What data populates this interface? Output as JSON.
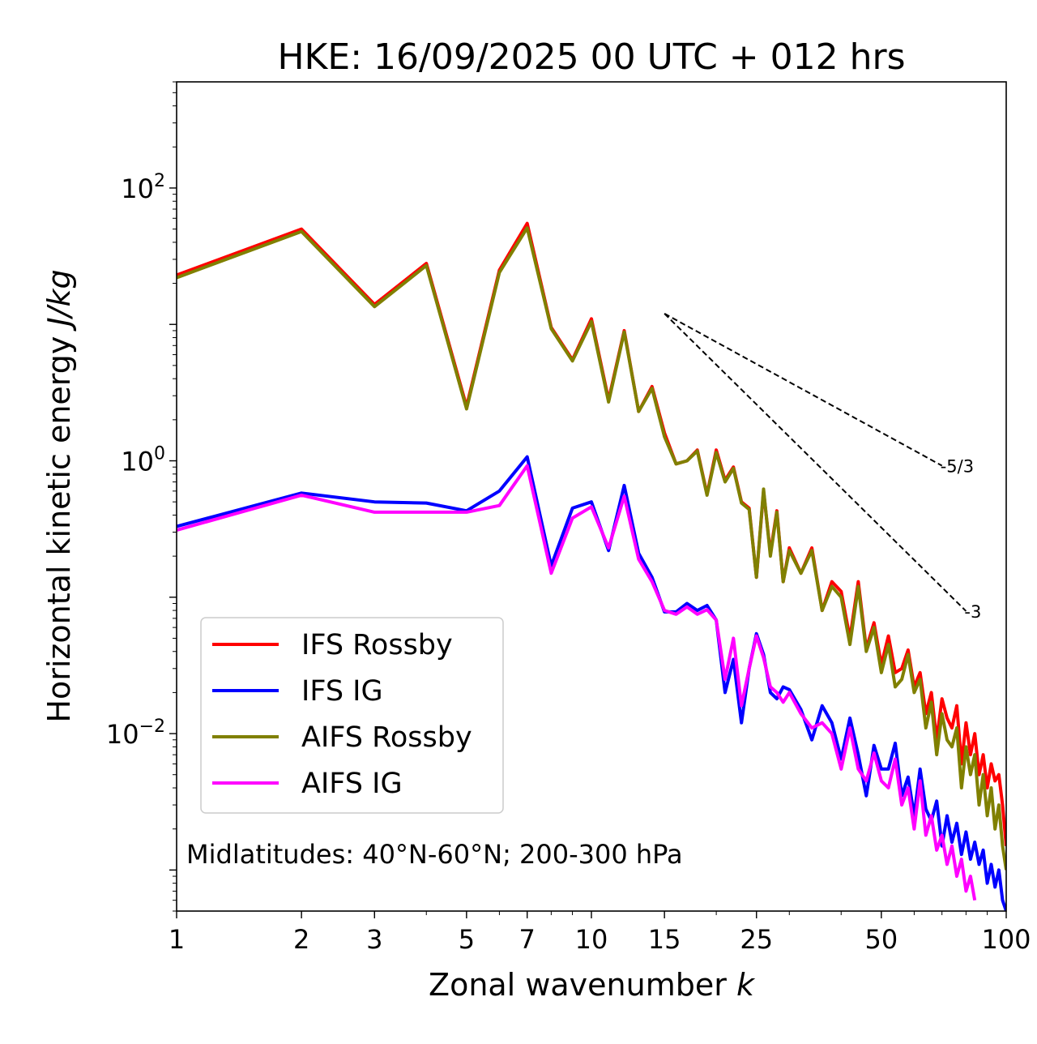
{
  "chart_data": {
    "type": "line",
    "title": "HKE: 16/09/2025 00 UTC + 012 hrs",
    "xlabel": "Zonal wavenumber",
    "xlabel_var": "k",
    "ylabel": "Horizontal kinetic energy",
    "ylabel_unit": "J/kg",
    "xscale": "log",
    "yscale": "log",
    "xlim": [
      1,
      100
    ],
    "ylim": [
      0.0005,
      600
    ],
    "xticks": [
      1,
      2,
      3,
      5,
      7,
      10,
      15,
      25,
      50,
      100
    ],
    "yticks": [
      {
        "value": 100,
        "base": "10",
        "exp": "2"
      },
      {
        "value": 1,
        "base": "10",
        "exp": "0"
      },
      {
        "value": 0.01,
        "base": "10",
        "exp": "−2"
      }
    ],
    "annotation": "Midlatitudes: 40°N-60°N; 200-300 hPa",
    "slope_lines": [
      {
        "label": "-5/3",
        "slope": -1.6667,
        "k0": 15,
        "e0": 12.0,
        "k1": 70
      },
      {
        "label": "-3",
        "slope": -3,
        "k0": 15,
        "e0": 12.0,
        "k1": 80
      }
    ],
    "series": [
      {
        "name": "IFS Rossby",
        "color": "#ff0000",
        "k": [
          1,
          2,
          3,
          4,
          5,
          6,
          7,
          8,
          9,
          10,
          11,
          12,
          13,
          14,
          15,
          16,
          17,
          18,
          19,
          20,
          21,
          22,
          23,
          24,
          25,
          26,
          27,
          28,
          29,
          30,
          32,
          34,
          36,
          38,
          40,
          42,
          44,
          46,
          48,
          50,
          52,
          54,
          56,
          58,
          60,
          62,
          64,
          66,
          68,
          70,
          72,
          74,
          76,
          78,
          80,
          82,
          84,
          86,
          88,
          90,
          92,
          94,
          96,
          98,
          100
        ],
        "values": [
          23,
          50,
          14,
          28,
          2.5,
          25,
          55,
          9.5,
          5.5,
          11,
          2.8,
          9.0,
          2.3,
          3.5,
          1.6,
          0.95,
          1.0,
          1.2,
          0.57,
          1.2,
          0.72,
          0.9,
          0.5,
          0.45,
          0.14,
          0.6,
          0.21,
          0.43,
          0.13,
          0.23,
          0.15,
          0.23,
          0.08,
          0.13,
          0.11,
          0.05,
          0.13,
          0.042,
          0.065,
          0.032,
          0.052,
          0.028,
          0.03,
          0.041,
          0.022,
          0.028,
          0.014,
          0.02,
          0.009,
          0.018,
          0.013,
          0.011,
          0.016,
          0.006,
          0.012,
          0.007,
          0.01,
          0.005,
          0.007,
          0.004,
          0.006,
          0.0045,
          0.005,
          0.003,
          0.0015
        ]
      },
      {
        "name": "IFS IG",
        "color": "#0000ff",
        "k": [
          1,
          2,
          3,
          4,
          5,
          6,
          7,
          8,
          9,
          10,
          11,
          12,
          13,
          14,
          15,
          16,
          17,
          18,
          19,
          20,
          21,
          22,
          23,
          24,
          25,
          26,
          27,
          28,
          29,
          30,
          32,
          34,
          36,
          38,
          40,
          42,
          44,
          46,
          48,
          50,
          52,
          54,
          56,
          58,
          60,
          62,
          64,
          66,
          68,
          70,
          72,
          74,
          76,
          78,
          80,
          82,
          84,
          86,
          88,
          90,
          92,
          94,
          96,
          98,
          100
        ],
        "values": [
          0.33,
          0.58,
          0.5,
          0.49,
          0.43,
          0.6,
          1.07,
          0.17,
          0.45,
          0.5,
          0.22,
          0.66,
          0.21,
          0.14,
          0.078,
          0.078,
          0.09,
          0.08,
          0.087,
          0.068,
          0.02,
          0.035,
          0.012,
          0.03,
          0.054,
          0.038,
          0.02,
          0.018,
          0.022,
          0.021,
          0.015,
          0.009,
          0.016,
          0.012,
          0.0065,
          0.013,
          0.007,
          0.0035,
          0.0082,
          0.0055,
          0.0055,
          0.0085,
          0.0035,
          0.0048,
          0.0025,
          0.0055,
          0.0028,
          0.0023,
          0.0032,
          0.0015,
          0.0025,
          0.0016,
          0.0022,
          0.0013,
          0.0019,
          0.0012,
          0.0016,
          0.0011,
          0.0014,
          0.0008,
          0.0011,
          0.00075,
          0.001,
          0.0006,
          0.0005
        ]
      },
      {
        "name": "AIFS Rossby",
        "color": "#808000",
        "k": [
          1,
          2,
          3,
          4,
          5,
          6,
          7,
          8,
          9,
          10,
          11,
          12,
          13,
          14,
          15,
          16,
          17,
          18,
          19,
          20,
          21,
          22,
          23,
          24,
          25,
          26,
          27,
          28,
          29,
          30,
          32,
          34,
          36,
          38,
          40,
          42,
          44,
          46,
          48,
          50,
          52,
          54,
          56,
          58,
          60,
          62,
          64,
          66,
          68,
          70,
          72,
          74,
          76,
          78,
          80,
          82,
          84,
          86,
          88,
          90,
          92,
          94,
          96,
          98,
          100
        ],
        "values": [
          22,
          48,
          13.5,
          27,
          2.4,
          24,
          51,
          9.3,
          5.4,
          10.5,
          2.7,
          8.8,
          2.3,
          3.4,
          1.5,
          0.95,
          1.0,
          1.18,
          0.56,
          1.15,
          0.7,
          0.88,
          0.49,
          0.44,
          0.14,
          0.62,
          0.2,
          0.42,
          0.13,
          0.22,
          0.15,
          0.22,
          0.08,
          0.12,
          0.1,
          0.045,
          0.12,
          0.04,
          0.06,
          0.028,
          0.045,
          0.022,
          0.025,
          0.038,
          0.02,
          0.025,
          0.011,
          0.017,
          0.007,
          0.014,
          0.009,
          0.008,
          0.011,
          0.004,
          0.008,
          0.005,
          0.007,
          0.003,
          0.005,
          0.0025,
          0.004,
          0.002,
          0.003,
          0.0015,
          0.001
        ]
      },
      {
        "name": "AIFS IG",
        "color": "#ff00ff",
        "k": [
          1,
          2,
          3,
          4,
          5,
          6,
          7,
          8,
          9,
          10,
          11,
          12,
          13,
          14,
          15,
          16,
          17,
          18,
          19,
          20,
          21,
          22,
          23,
          24,
          25,
          26,
          27,
          28,
          29,
          30,
          32,
          34,
          36,
          38,
          40,
          42,
          44,
          46,
          48,
          50,
          52,
          54,
          56,
          58,
          60,
          62,
          64,
          66,
          68,
          70,
          72,
          74,
          76,
          78,
          80,
          82,
          84
        ],
        "values": [
          0.31,
          0.56,
          0.42,
          0.42,
          0.42,
          0.47,
          0.92,
          0.15,
          0.38,
          0.46,
          0.23,
          0.55,
          0.19,
          0.13,
          0.08,
          0.075,
          0.085,
          0.075,
          0.081,
          0.068,
          0.025,
          0.05,
          0.016,
          0.03,
          0.052,
          0.036,
          0.022,
          0.02,
          0.017,
          0.02,
          0.014,
          0.011,
          0.012,
          0.01,
          0.0055,
          0.011,
          0.0055,
          0.0045,
          0.0072,
          0.0045,
          0.004,
          0.0065,
          0.003,
          0.004,
          0.002,
          0.0045,
          0.0018,
          0.0025,
          0.0014,
          0.0018,
          0.0011,
          0.0015,
          0.0009,
          0.0012,
          0.0007,
          0.0009,
          0.0006
        ]
      }
    ]
  }
}
